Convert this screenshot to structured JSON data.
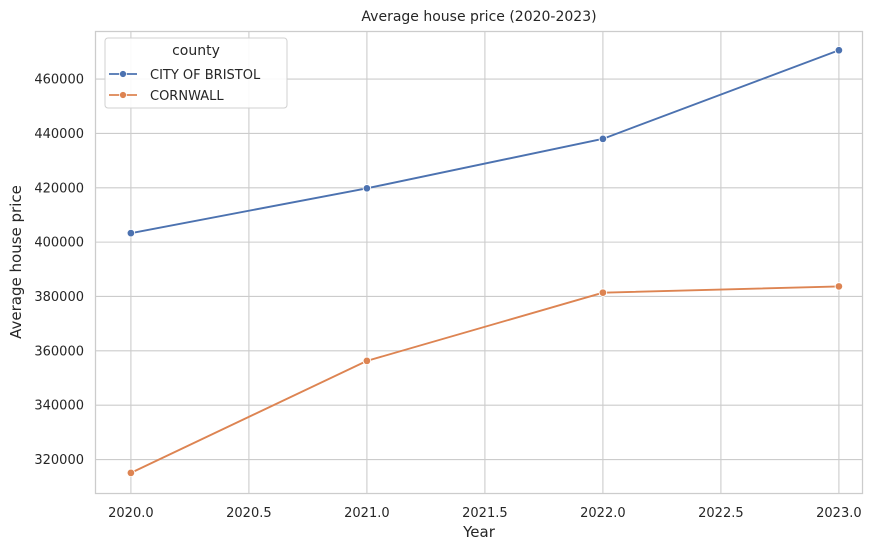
{
  "chart_data": {
    "type": "line",
    "title": "Average house price (2020-2023)",
    "xlabel": "Year",
    "ylabel": "Average house price",
    "x": [
      2020,
      2021,
      2022,
      2023
    ],
    "xlim": [
      2019.85,
      2023.1
    ],
    "ylim": [
      307500,
      477500
    ],
    "xticks": [
      "2020.0",
      "2020.5",
      "2021.0",
      "2021.5",
      "2022.0",
      "2022.5",
      "2023.0"
    ],
    "yticks": [
      "320000",
      "340000",
      "360000",
      "380000",
      "400000",
      "420000",
      "440000",
      "460000"
    ],
    "grid": true,
    "legend": {
      "title": "county",
      "placement": "top-left"
    },
    "series": [
      {
        "name": "CITY OF BRISTOL",
        "color": "#4c72b0",
        "values": [
          403300,
          419800,
          438000,
          470600
        ]
      },
      {
        "name": "CORNWALL",
        "color": "#dd8452",
        "values": [
          315100,
          356300,
          381400,
          383700
        ]
      }
    ]
  }
}
